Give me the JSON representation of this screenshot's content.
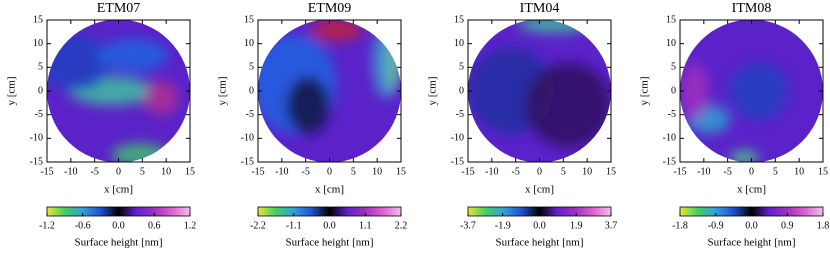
{
  "chart_data": [
    {
      "type": "heatmap",
      "title": "ETM07",
      "xlabel": "x [cm]",
      "ylabel": "y [cm]",
      "xlim": [
        -15,
        15
      ],
      "xticks": [
        -15,
        -10,
        -5,
        0,
        5,
        10,
        15
      ],
      "ylim": [
        -15,
        15
      ],
      "yticks": [
        -15,
        -10,
        -5,
        0,
        5,
        10,
        15
      ],
      "colorbar_label": "Surface height [nm]",
      "clim": [
        -1.2,
        1.2
      ],
      "cticks": [
        -1.2,
        -0.6,
        {
          "value": 0,
          "label": "0.0"
        },
        0.6,
        1.2
      ],
      "colormap": [
        "#e8e830",
        "#40d060",
        "#30a0e0",
        "#2050d0",
        "#000000",
        "#6020d0",
        "#a030c0",
        "#e060d0",
        "#f0c0f0"
      ]
    },
    {
      "type": "heatmap",
      "title": "ETM09",
      "xlabel": "x [cm]",
      "ylabel": "y [cm]",
      "xlim": [
        -15,
        15
      ],
      "xticks": [
        -15,
        -10,
        -5,
        0,
        5,
        10,
        15
      ],
      "ylim": [
        -15,
        15
      ],
      "yticks": [
        -15,
        -10,
        -5,
        0,
        5,
        10,
        15
      ],
      "colorbar_label": "Surface height [nm]",
      "clim": [
        -2.2,
        2.2
      ],
      "cticks": [
        -2.2,
        -1.1,
        {
          "value": 0,
          "label": "0.0"
        },
        1.1,
        2.2
      ],
      "colormap": [
        "#e8e830",
        "#40d060",
        "#30a0e0",
        "#2050d0",
        "#000000",
        "#6020d0",
        "#a030c0",
        "#e060d0",
        "#f0c0f0"
      ]
    },
    {
      "type": "heatmap",
      "title": "ITM04",
      "xlabel": "x [cm]",
      "ylabel": "y [cm]",
      "xlim": [
        -15,
        15
      ],
      "xticks": [
        -15,
        -10,
        -5,
        0,
        5,
        10,
        15
      ],
      "ylim": [
        -15,
        15
      ],
      "yticks": [
        -15,
        -10,
        -5,
        0,
        5,
        10,
        15
      ],
      "colorbar_label": "Surface height [nm]",
      "clim": [
        -3.7,
        3.7
      ],
      "cticks": [
        -3.7,
        -1.9,
        {
          "value": 0,
          "label": "0.0"
        },
        1.9,
        3.7
      ],
      "colormap": [
        "#e8e830",
        "#40d060",
        "#30a0e0",
        "#2050d0",
        "#000000",
        "#6020d0",
        "#a030c0",
        "#e060d0",
        "#f0c0f0"
      ]
    },
    {
      "type": "heatmap",
      "title": "ITM08",
      "xlabel": "x [cm]",
      "ylabel": "y [cm]",
      "xlim": [
        -15,
        15
      ],
      "xticks": [
        -15,
        -10,
        -5,
        0,
        5,
        10,
        15
      ],
      "ylim": [
        -15,
        15
      ],
      "yticks": [
        -15,
        -10,
        -5,
        0,
        5,
        10,
        15
      ],
      "colorbar_label": "Surface height [nm]",
      "clim": [
        -1.8,
        1.8
      ],
      "cticks": [
        -1.8,
        -0.9,
        {
          "value": 0,
          "label": "0.0"
        },
        0.9,
        1.8
      ],
      "colormap": [
        "#e8e830",
        "#40d060",
        "#30a0e0",
        "#2050d0",
        "#000000",
        "#6020d0",
        "#a030c0",
        "#e060d0",
        "#f0c0f0"
      ]
    }
  ]
}
